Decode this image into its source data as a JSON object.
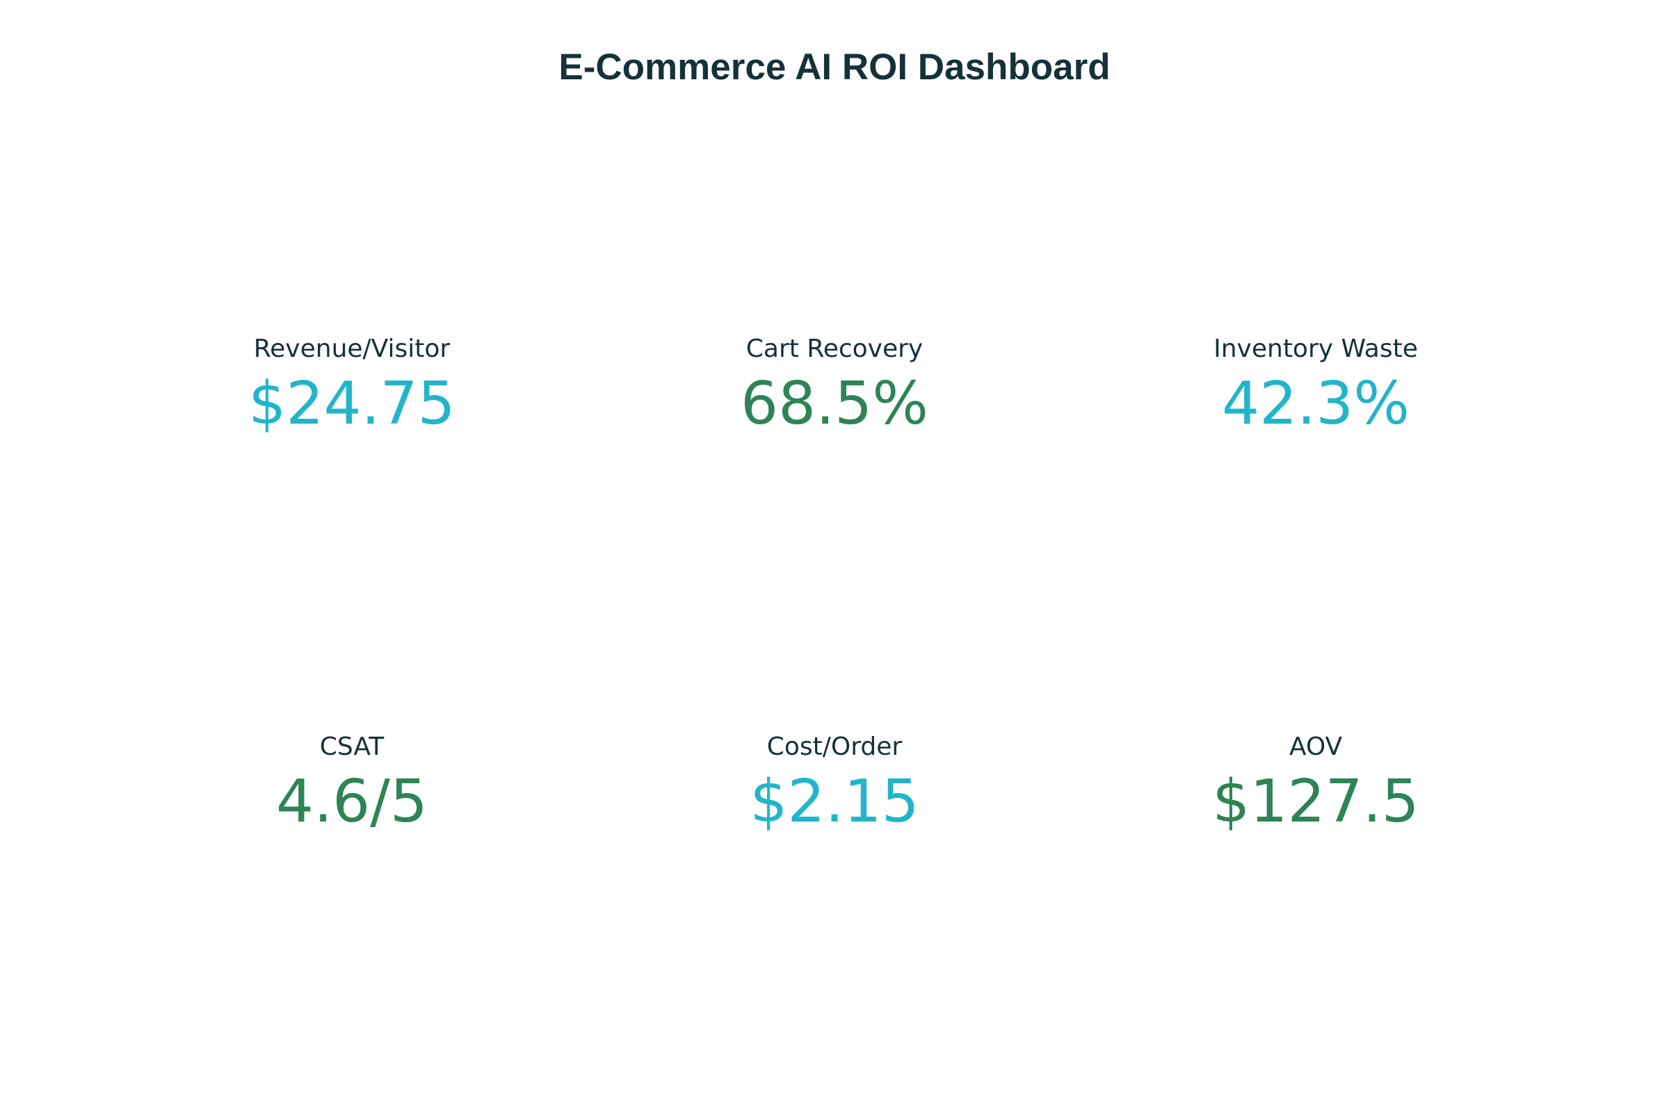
{
  "title": "E-Commerce AI ROI Dashboard",
  "colors": {
    "title": "#15313a",
    "label": "#15313a",
    "accent_cyan": "#22b5c9",
    "accent_green": "#2e8455"
  },
  "kpis": [
    {
      "label": "Revenue/Visitor",
      "value": "$24.75",
      "color": "#22b5c9"
    },
    {
      "label": "Cart Recovery",
      "value": "68.5%",
      "color": "#2e8455"
    },
    {
      "label": "Inventory Waste",
      "value": "42.3%",
      "color": "#22b5c9"
    },
    {
      "label": "CSAT",
      "value": "4.6/5",
      "color": "#2e8455"
    },
    {
      "label": "Cost/Order",
      "value": "$2.15",
      "color": "#22b5c9"
    },
    {
      "label": "AOV",
      "value": "$127.5",
      "color": "#2e8455"
    }
  ],
  "chart_data": {
    "type": "table",
    "title": "E-Commerce AI ROI Dashboard",
    "categories": [
      "Revenue/Visitor",
      "Cart Recovery",
      "Inventory Waste",
      "CSAT",
      "Cost/Order",
      "AOV"
    ],
    "values": [
      24.75,
      68.5,
      42.3,
      4.6,
      2.15,
      127.5
    ],
    "display_values": [
      "$24.75",
      "68.5%",
      "42.3%",
      "4.6/5",
      "$2.15",
      "$127.5"
    ]
  }
}
